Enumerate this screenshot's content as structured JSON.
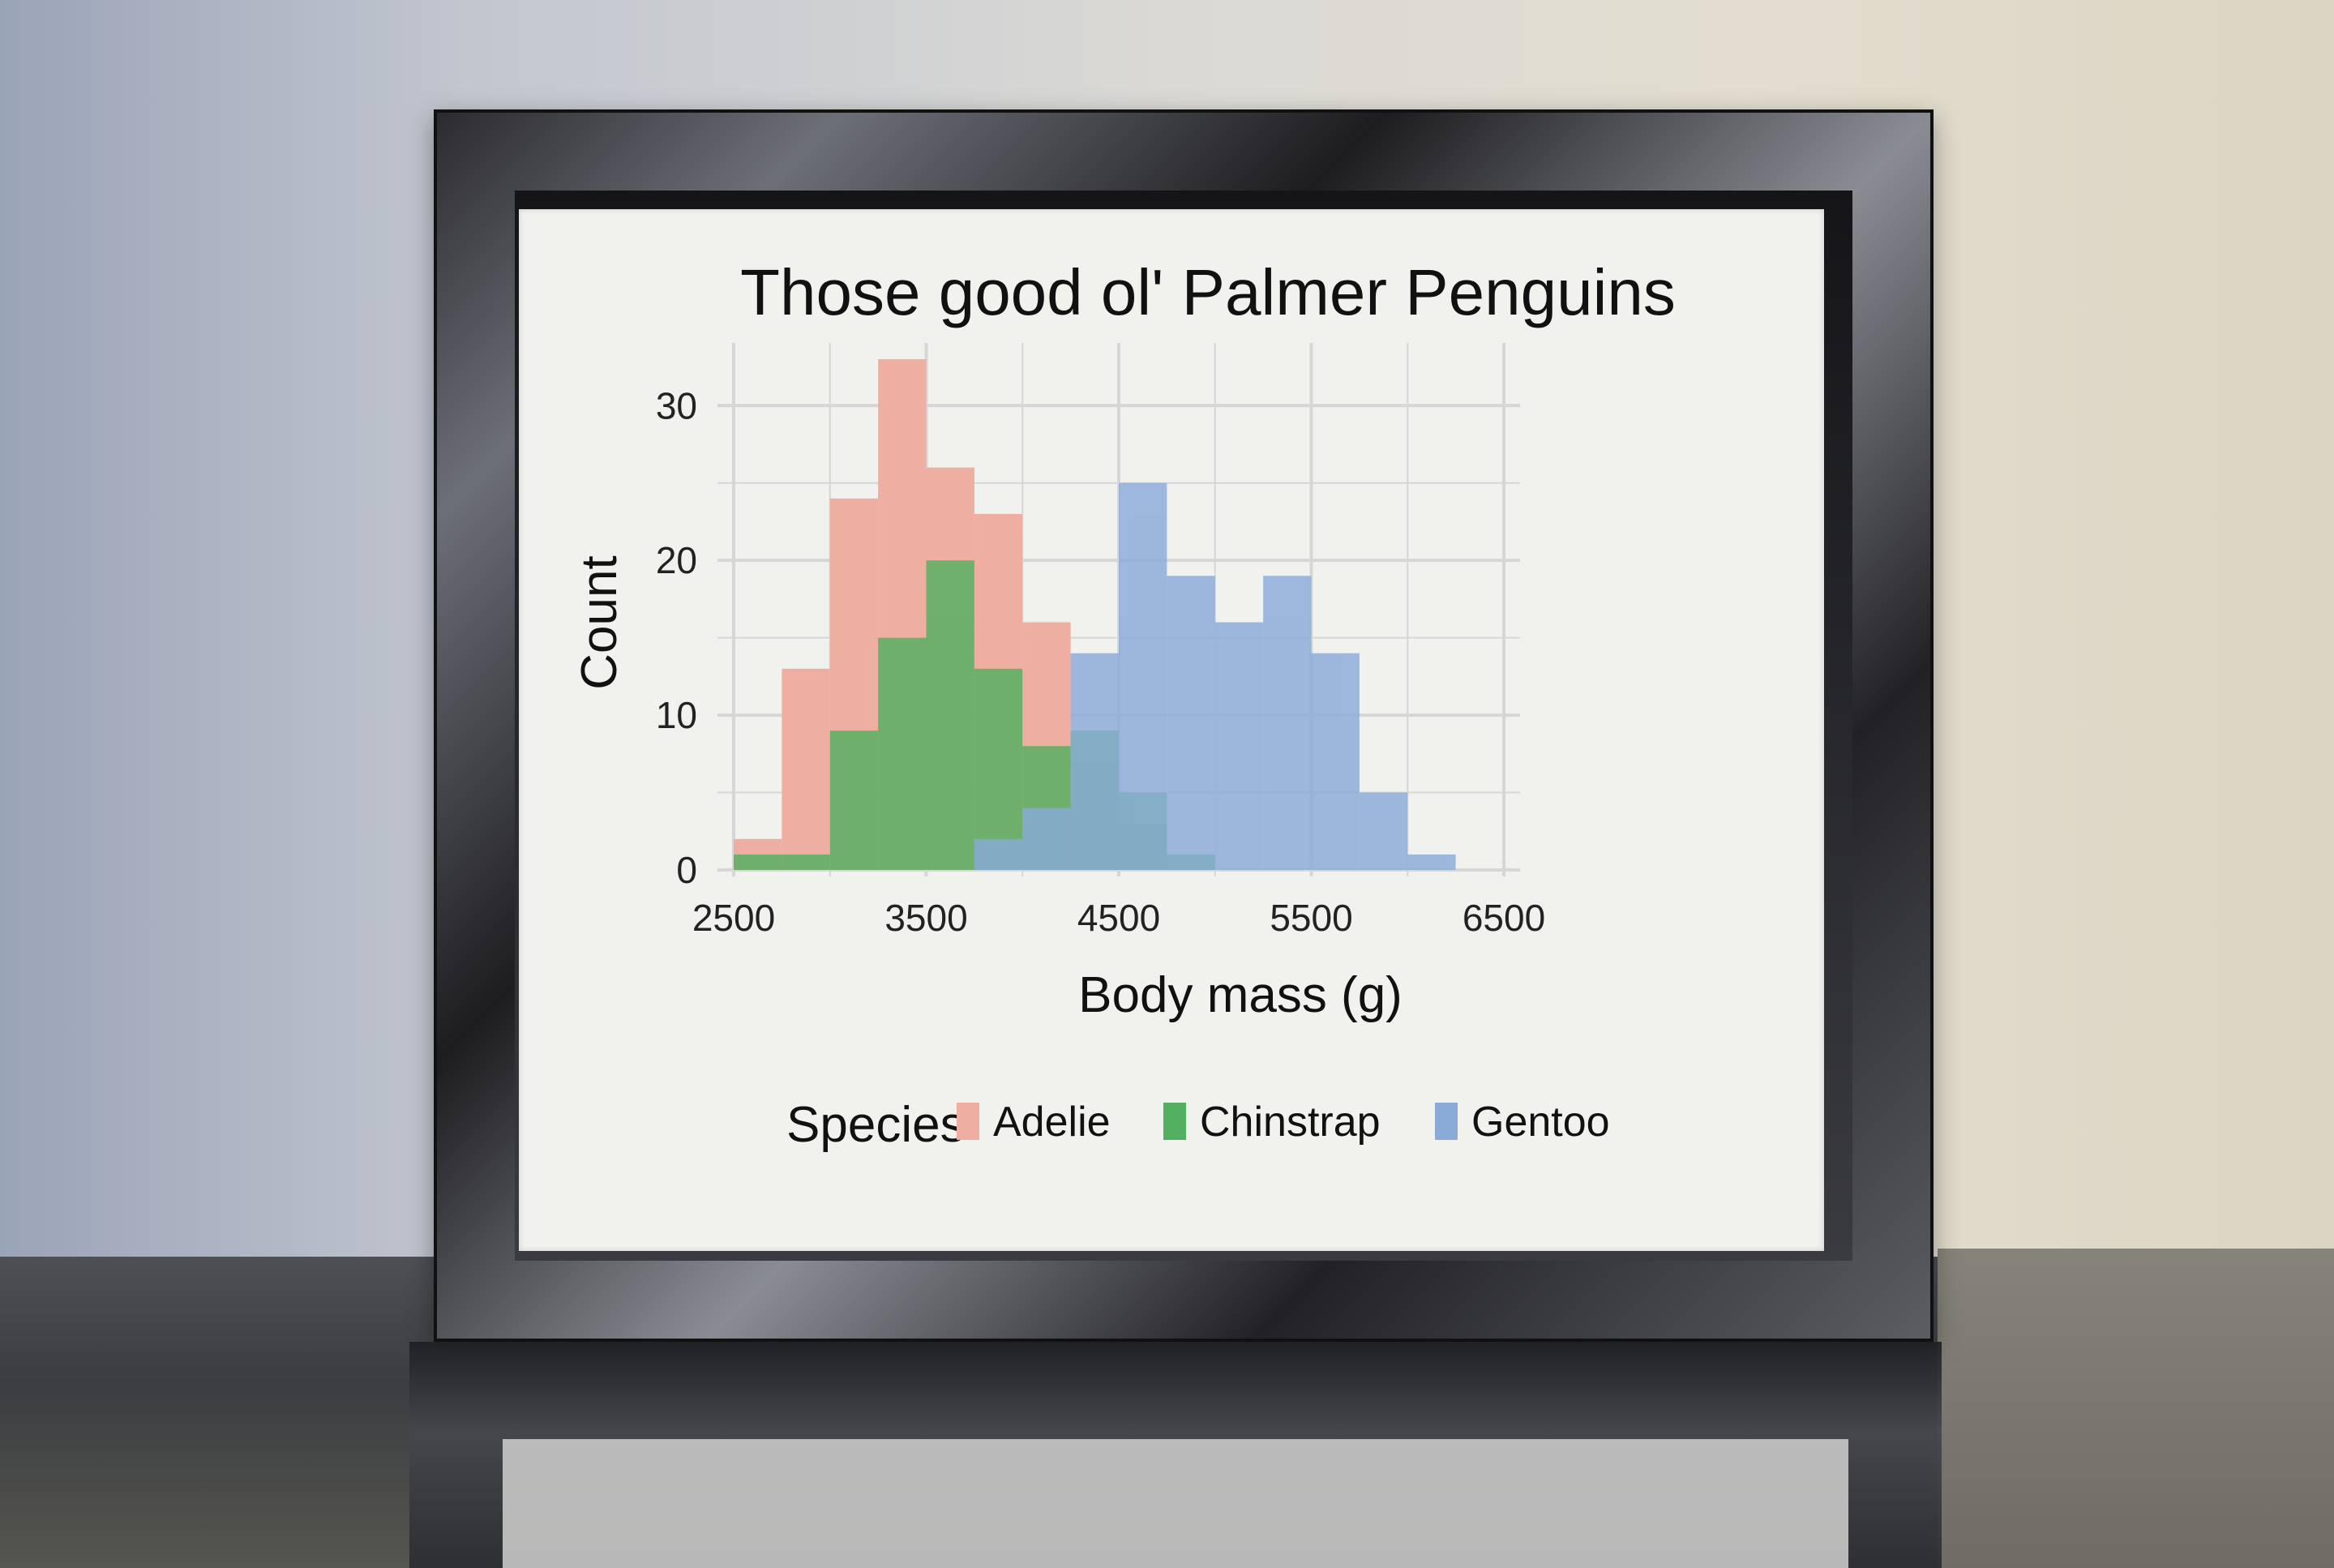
{
  "chart_data": {
    "type": "bar",
    "title": "Those good ol' Palmer Penguins",
    "xlabel": "Body mass (g)",
    "ylabel": "Count",
    "xlim": [
      2500,
      6500
    ],
    "ylim": [
      0,
      33
    ],
    "x_ticks": [
      2500,
      3500,
      4500,
      5500,
      6500
    ],
    "x_tick_labels": [
      "2500",
      "3500",
      "4500",
      "5500",
      "6500"
    ],
    "y_ticks": [
      0,
      10,
      20,
      30
    ],
    "y_tick_labels": [
      "0",
      "10",
      "20",
      "30"
    ],
    "bin_width": 250,
    "bins": [
      2625,
      2875,
      3125,
      3375,
      3625,
      3875,
      4125,
      4375,
      4625,
      4875,
      5125,
      5375,
      5625,
      5875,
      6125,
      6375
    ],
    "series": [
      {
        "name": "Adelie",
        "color": "#eeafa2",
        "values": [
          2,
          13,
          24,
          33,
          26,
          23,
          16,
          7,
          3,
          0,
          0,
          0,
          0,
          0,
          0,
          0
        ]
      },
      {
        "name": "Chinstrap",
        "color": "#52b060",
        "values": [
          1,
          1,
          9,
          15,
          20,
          13,
          8,
          9,
          5,
          1,
          0,
          0,
          0,
          0,
          0,
          0
        ]
      },
      {
        "name": "Gentoo",
        "color": "#8aabd8",
        "values": [
          0,
          0,
          0,
          0,
          0,
          2,
          4,
          14,
          25,
          19,
          16,
          19,
          14,
          5,
          1,
          0
        ]
      }
    ],
    "legend_title": "Species",
    "legend_position": "bottom",
    "grid": true
  }
}
